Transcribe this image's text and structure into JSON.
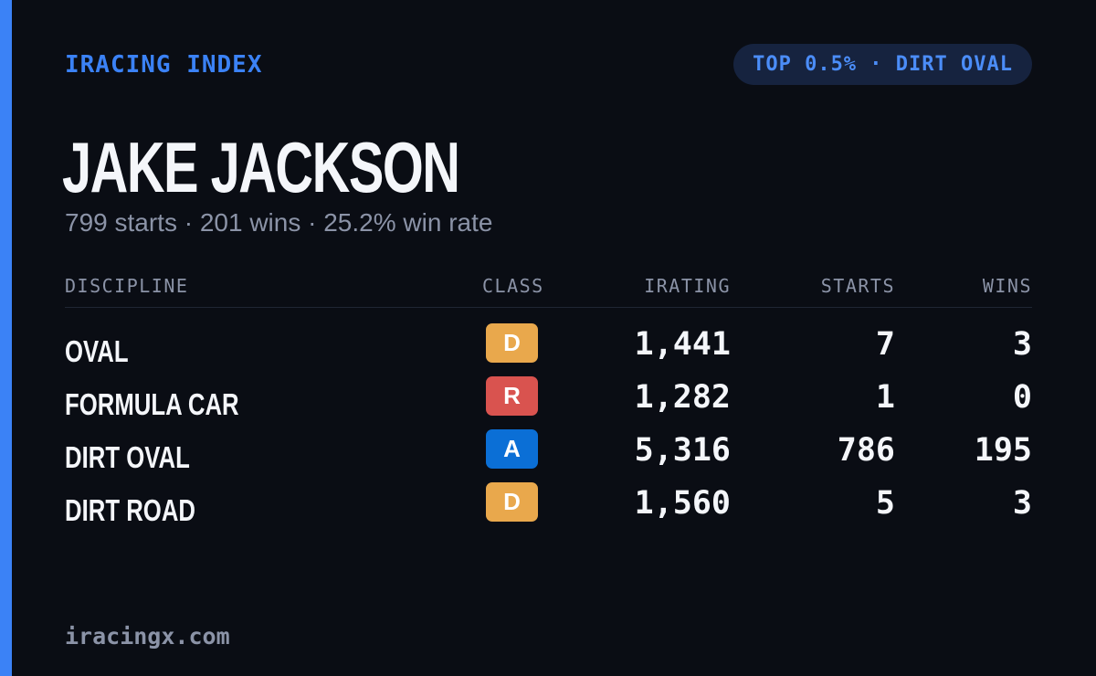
{
  "brand": "IRACING INDEX",
  "badge": "TOP 0.5% · DIRT OVAL",
  "driver": {
    "name": "JAKE JACKSON",
    "summary": "799 starts · 201 wins · 25.2% win rate"
  },
  "table": {
    "headers": {
      "discipline": "DISCIPLINE",
      "class": "CLASS",
      "irating": "IRATING",
      "starts": "STARTS",
      "wins": "WINS"
    },
    "rows": [
      {
        "discipline": "OVAL",
        "class": "D",
        "class_color": "#e9a84c",
        "irating": "1,441",
        "starts": "7",
        "wins": "3"
      },
      {
        "discipline": "FORMULA CAR",
        "class": "R",
        "class_color": "#d9534f",
        "irating": "1,282",
        "starts": "1",
        "wins": "0"
      },
      {
        "discipline": "DIRT OVAL",
        "class": "A",
        "class_color": "#0b6fd6",
        "irating": "5,316",
        "starts": "786",
        "wins": "195"
      },
      {
        "discipline": "DIRT ROAD",
        "class": "D",
        "class_color": "#e9a84c",
        "irating": "1,560",
        "starts": "5",
        "wins": "3"
      }
    ]
  },
  "footer": "iracingx.com",
  "colors": {
    "background": "#0a0d14",
    "accent": "#3b82f6",
    "text_primary": "#f4f6fa",
    "text_muted": "#8b93a7"
  }
}
